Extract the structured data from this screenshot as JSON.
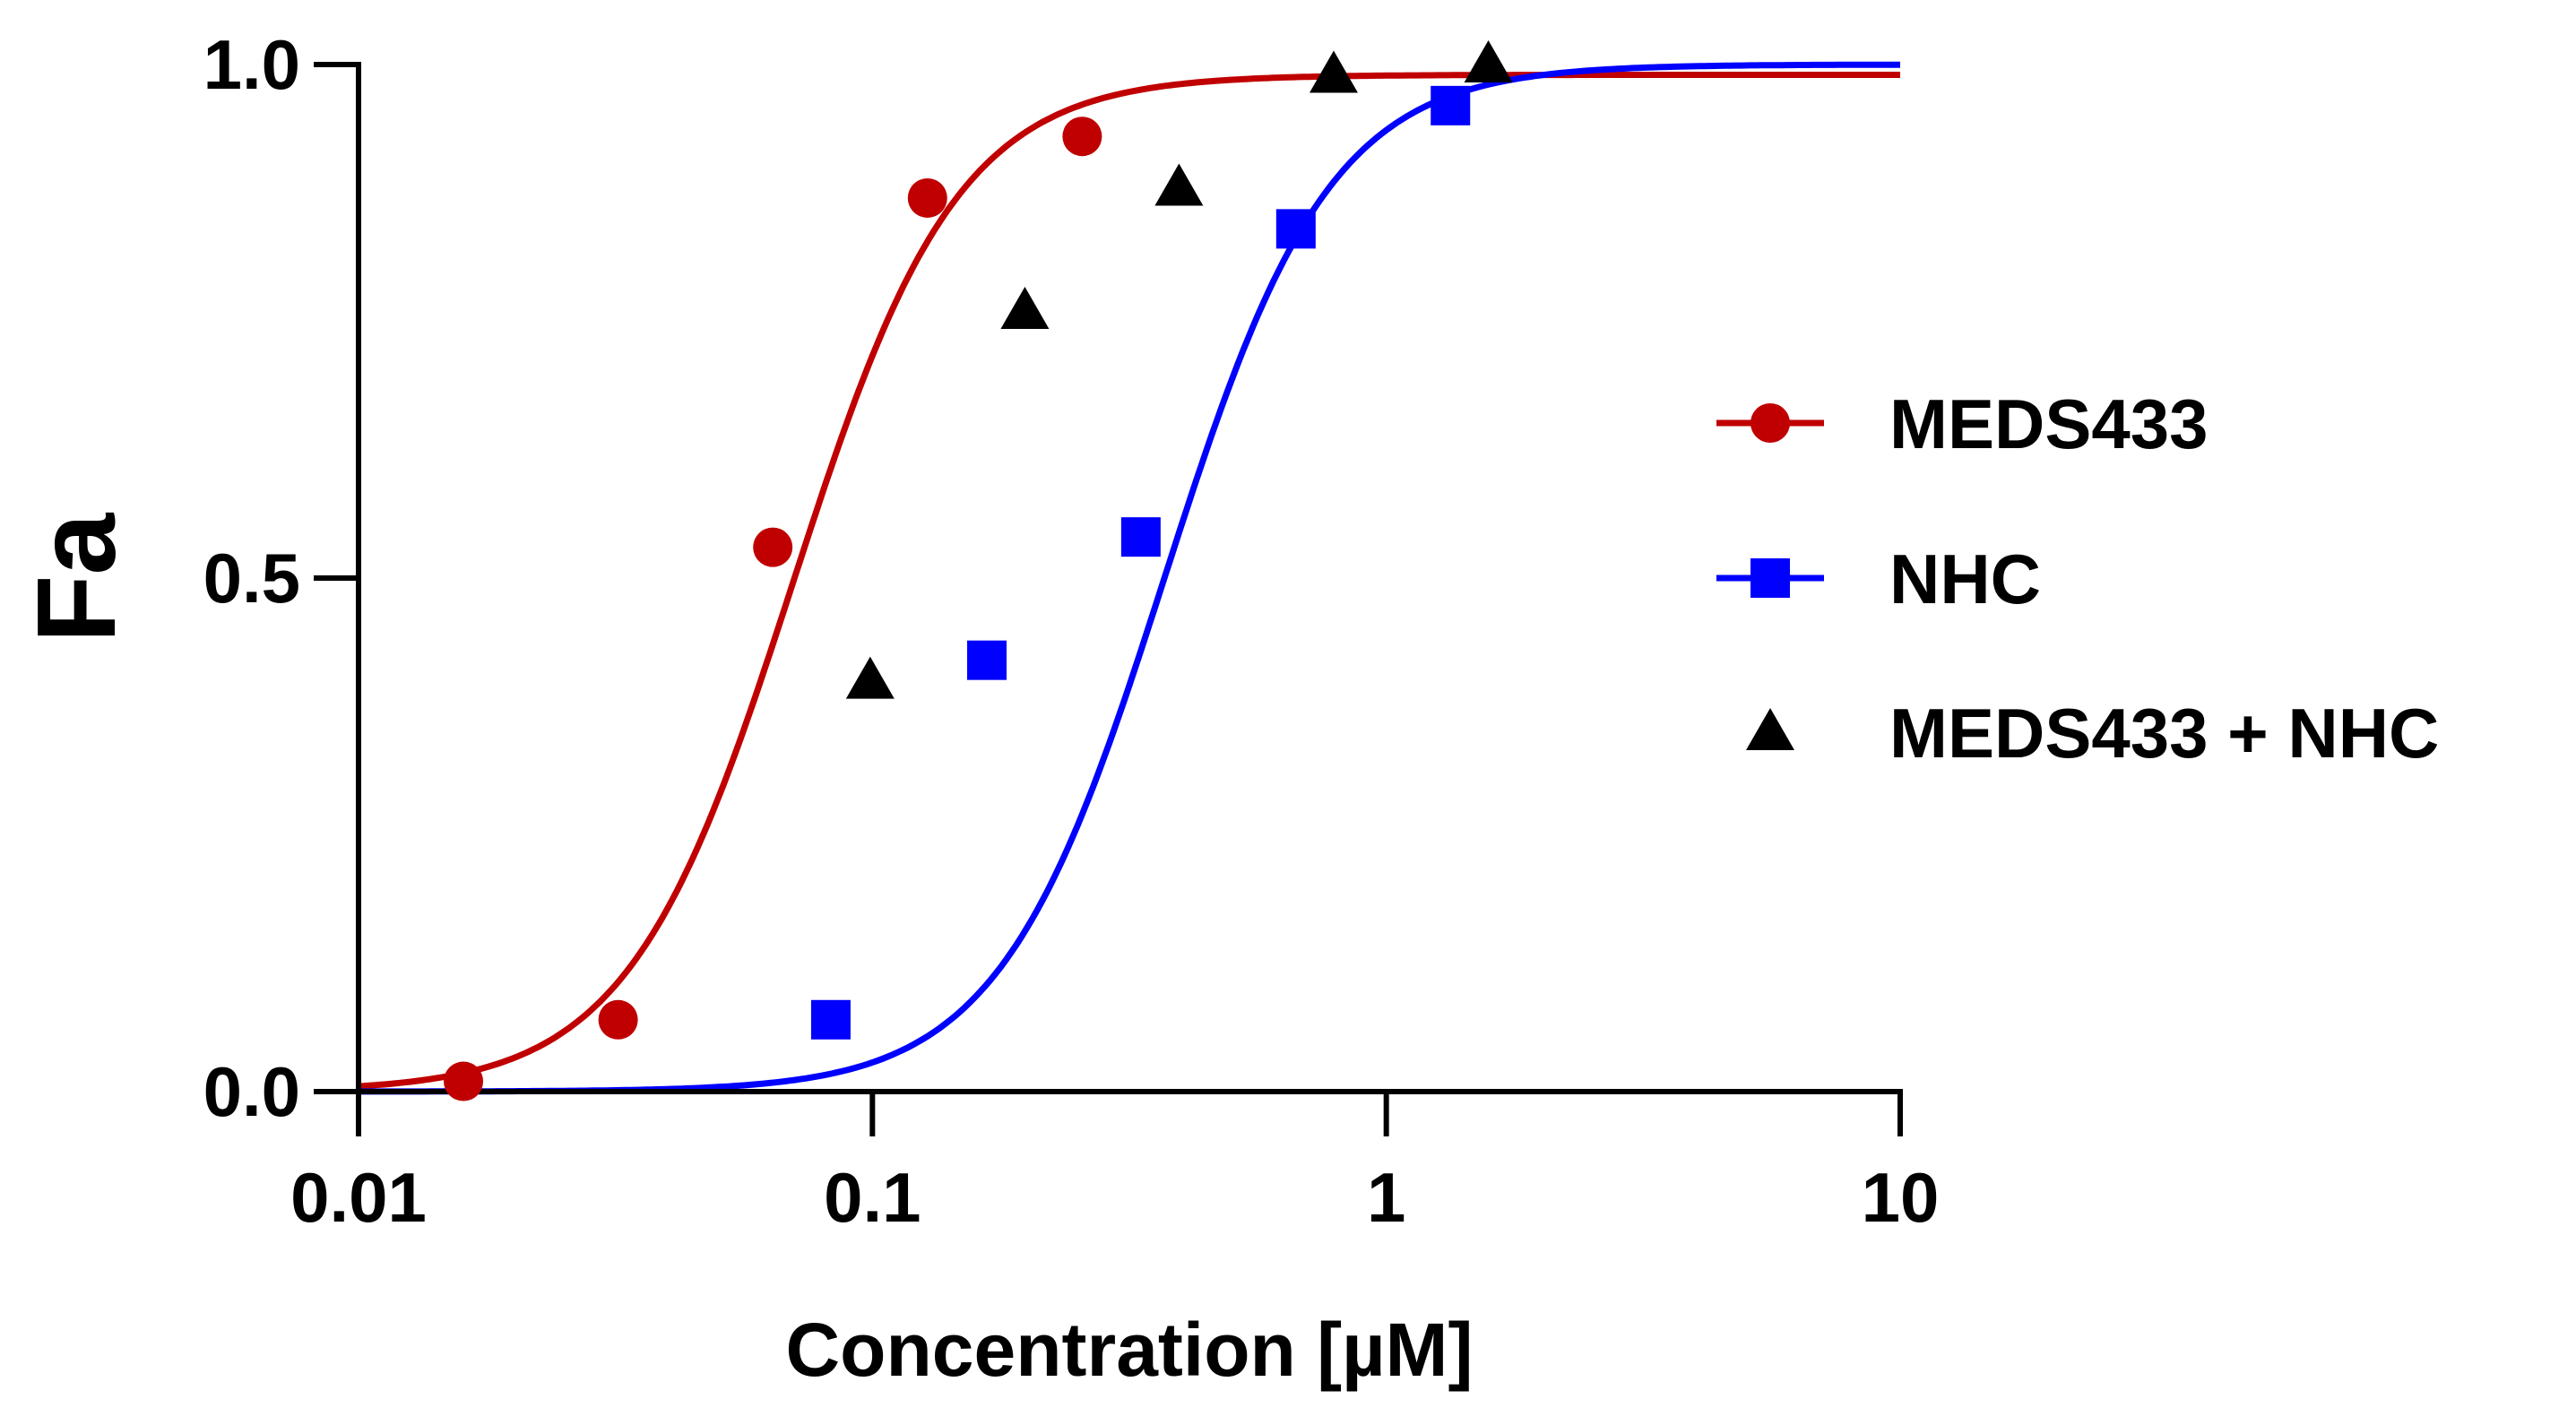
{
  "chart_data": {
    "type": "scatter",
    "title": "",
    "xlabel": "Concentration [µM]",
    "ylabel": "Fa",
    "xscale": "log",
    "xlim": [
      0.01,
      10
    ],
    "ylim": [
      0,
      1
    ],
    "x_ticks": [
      0.01,
      0.1,
      1,
      10
    ],
    "x_tick_labels": [
      "0.01",
      "0.1",
      "1",
      "10"
    ],
    "y_ticks": [
      0,
      0.5,
      1
    ],
    "y_tick_labels": [
      "0.0",
      "0.5",
      "1.0"
    ],
    "grid": false,
    "legend_position": "right",
    "series": [
      {
        "name": "MEDS433",
        "color": "#c00000",
        "marker": "circle",
        "x": [
          0.016,
          0.032,
          0.064,
          0.128,
          0.256
        ],
        "y": [
          0.01,
          0.07,
          0.53,
          0.87,
          0.93
        ],
        "fit": {
          "bottom": 0,
          "top": 0.99,
          "ic50": 0.07,
          "hill": 2.7
        }
      },
      {
        "name": "NHC",
        "color": "#0000ff",
        "marker": "square",
        "x": [
          0.083,
          0.167,
          0.333,
          0.667,
          1.333
        ],
        "y": [
          0.07,
          0.42,
          0.54,
          0.84,
          0.96
        ],
        "fit": {
          "bottom": 0,
          "top": 1.0,
          "ic50": 0.37,
          "hill": 2.7
        }
      },
      {
        "name": "MEDS433 + NHC",
        "color": "#000000",
        "marker": "triangle",
        "x": [
          0.099,
          0.198,
          0.395,
          0.79,
          1.58
        ],
        "y": [
          0.4,
          0.76,
          0.88,
          0.99,
          1.0
        ]
      }
    ]
  }
}
